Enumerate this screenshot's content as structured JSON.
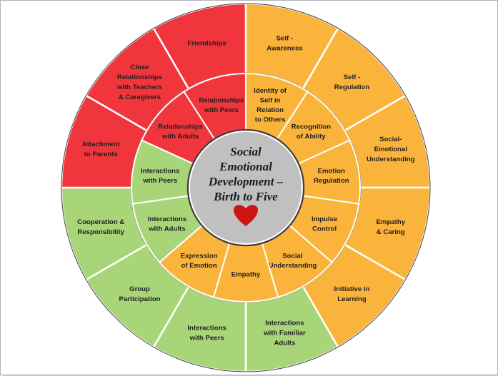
{
  "center": {
    "lines": [
      "Social",
      "Emotional",
      "Development –",
      "Birth to Five"
    ],
    "icon": "heart-icon"
  },
  "colors": {
    "red": "#f0363c",
    "orange": "#fbb43b",
    "green": "#a8d578",
    "center": "#c0c0c0",
    "separator": "#ffffff",
    "heart": "#cc1414",
    "ring_border": "#3c3c3c"
  },
  "outer_ring": [
    {
      "name": "self-awareness",
      "lines": [
        "Self -",
        "Awareness"
      ],
      "color": "orange"
    },
    {
      "name": "self-regulation",
      "lines": [
        "Self -",
        "Regulation"
      ],
      "color": "orange"
    },
    {
      "name": "social-emotional-understanding",
      "lines": [
        "Social-",
        "Emotional",
        "Understanding"
      ],
      "color": "orange"
    },
    {
      "name": "empathy-caring",
      "lines": [
        "Empathy",
        "& Caring"
      ],
      "color": "orange"
    },
    {
      "name": "initiative-in-learning",
      "lines": [
        "Initiative in",
        "Learning"
      ],
      "color": "orange"
    },
    {
      "name": "interactions-familiar-adults",
      "lines": [
        "Interactions",
        "with Familiar",
        "Adults"
      ],
      "color": "green"
    },
    {
      "name": "interactions-peers-outer",
      "lines": [
        "Interactions",
        "with Peers"
      ],
      "color": "green"
    },
    {
      "name": "group-participation",
      "lines": [
        "Group",
        "Participation"
      ],
      "color": "green"
    },
    {
      "name": "cooperation-responsibility",
      "lines": [
        "Cooperation &",
        "Responsibility"
      ],
      "color": "green"
    },
    {
      "name": "attachment-to-parents",
      "lines": [
        "Attachment",
        "to Parents"
      ],
      "color": "red"
    },
    {
      "name": "close-relationships",
      "lines": [
        "Close",
        "Relationships",
        "with Teachers",
        "& Caregivers"
      ],
      "color": "red"
    },
    {
      "name": "friendships",
      "lines": [
        "Friendships"
      ],
      "color": "red"
    }
  ],
  "inner_ring": [
    {
      "name": "identity-of-self",
      "lines": [
        "Identity of",
        "Self in",
        "Relation",
        "to Others"
      ],
      "color": "orange"
    },
    {
      "name": "recognition-of-ability",
      "lines": [
        "Recognition",
        "of Ability"
      ],
      "color": "orange"
    },
    {
      "name": "emotion-regulation",
      "lines": [
        "Emotion",
        "Regulation"
      ],
      "color": "orange"
    },
    {
      "name": "impulse-control",
      "lines": [
        "Impulse",
        "Control"
      ],
      "color": "orange"
    },
    {
      "name": "social-understanding",
      "lines": [
        "Social",
        "Understanding"
      ],
      "color": "orange"
    },
    {
      "name": "empathy-inner",
      "lines": [
        "Empathy"
      ],
      "color": "orange"
    },
    {
      "name": "expression-of-emotion",
      "lines": [
        "Expression",
        "of Emotion"
      ],
      "color": "orange"
    },
    {
      "name": "interactions-adults-inner",
      "lines": [
        "Interactions",
        "with Adults"
      ],
      "color": "green"
    },
    {
      "name": "interactions-peers-inner",
      "lines": [
        "Interactions",
        "with Peers"
      ],
      "color": "green"
    },
    {
      "name": "relationships-adults",
      "lines": [
        "Relationships",
        "with Adults"
      ],
      "color": "red"
    },
    {
      "name": "relationships-peers",
      "lines": [
        "Relationships",
        "with Peers"
      ],
      "color": "red"
    }
  ]
}
